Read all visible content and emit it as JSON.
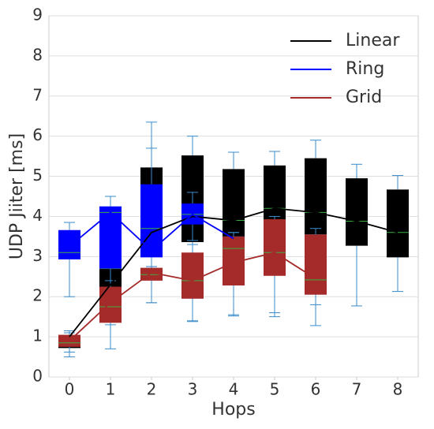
{
  "chart_data": {
    "type": "box",
    "x": [
      0,
      1,
      2,
      3,
      4,
      5,
      6,
      7,
      8
    ],
    "xlabel": "Hops",
    "ylabel": "UDP Jiiter [ms]",
    "xlim": [
      -0.5,
      8.5
    ],
    "xticks": [
      0,
      1,
      2,
      3,
      4,
      5,
      6,
      7,
      8
    ],
    "ylim": [
      0,
      9
    ],
    "yticks": [
      0,
      1,
      2,
      3,
      4,
      5,
      6,
      7,
      8,
      9
    ],
    "grid": true,
    "legend": "upper right",
    "whisker_color": "#3a8ccc",
    "median_color": "#3cb043",
    "series": [
      {
        "name": "Linear",
        "color": "#000000",
        "min": [
          0.5,
          1.3,
          1.85,
          1.4,
          1.55,
          1.6,
          1.8,
          1.77,
          2.13
        ],
        "q1": [
          0.72,
          2.25,
          3.0,
          3.36,
          3.5,
          3.9,
          3.55,
          3.27,
          2.98
        ],
        "median": [
          0.85,
          2.7,
          3.7,
          4.1,
          3.9,
          4.2,
          4.1,
          3.88,
          3.6
        ],
        "q3": [
          1.0,
          4.1,
          5.22,
          5.52,
          5.18,
          5.27,
          5.45,
          4.95,
          4.67
        ],
        "max": [
          1.15,
          4.5,
          6.35,
          6.0,
          5.6,
          5.62,
          5.9,
          5.3,
          5.02
        ],
        "mean": [
          1.0,
          2.3,
          3.6,
          4.0,
          3.9,
          4.2,
          4.1,
          3.88,
          3.6
        ]
      },
      {
        "name": "Ring",
        "color": "#0000ff",
        "min": [
          2.0,
          2.2,
          2.75,
          3.4,
          3.1,
          null,
          null,
          null,
          null
        ],
        "q1": [
          2.93,
          2.7,
          2.98,
          3.8,
          3.2,
          null,
          null,
          null,
          null
        ],
        "median": [
          3.1,
          4.1,
          3.7,
          4.05,
          3.45,
          null,
          null,
          null,
          null
        ],
        "q3": [
          3.66,
          4.25,
          4.8,
          4.32,
          3.5,
          null,
          null,
          null,
          null
        ],
        "max": [
          3.85,
          4.5,
          5.7,
          4.6,
          3.6,
          null,
          null,
          null,
          null
        ],
        "mean": [
          3.25,
          4.1,
          3.15,
          4.05,
          3.45,
          null,
          null,
          null,
          null
        ]
      },
      {
        "name": "Grid",
        "color": "#a52a2a",
        "min": [
          0.62,
          0.7,
          1.85,
          1.38,
          1.52,
          1.5,
          1.28,
          null,
          null
        ],
        "q1": [
          0.75,
          1.35,
          2.4,
          1.95,
          2.28,
          2.52,
          2.05,
          null,
          null
        ],
        "median": [
          0.85,
          1.75,
          2.55,
          2.4,
          3.2,
          3.1,
          2.42,
          null,
          null
        ],
        "q3": [
          1.05,
          2.25,
          2.72,
          3.1,
          3.5,
          3.93,
          3.55,
          null,
          null
        ],
        "max": [
          1.1,
          2.4,
          2.75,
          3.3,
          3.6,
          4.0,
          3.7,
          null,
          null
        ],
        "mean": [
          0.9,
          1.85,
          2.6,
          2.4,
          2.85,
          3.1,
          2.45,
          null,
          null
        ]
      }
    ]
  }
}
